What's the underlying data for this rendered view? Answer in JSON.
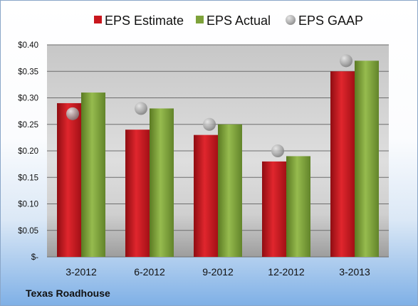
{
  "chart_data": {
    "type": "bar",
    "categories": [
      "3-2012",
      "6-2012",
      "9-2012",
      "12-2012",
      "3-2013"
    ],
    "series": [
      {
        "name": "EPS Estimate",
        "kind": "bar",
        "color": "#c8161d",
        "values": [
          0.29,
          0.24,
          0.23,
          0.18,
          0.35
        ]
      },
      {
        "name": "EPS Actual",
        "kind": "bar",
        "color": "#7ea23a",
        "values": [
          0.31,
          0.28,
          0.25,
          0.19,
          0.37
        ]
      },
      {
        "name": "EPS GAAP",
        "kind": "marker",
        "color": "#9a9a9a",
        "values": [
          0.27,
          0.28,
          0.25,
          0.2,
          0.37
        ]
      }
    ],
    "yticks": [
      "$-",
      "$0.05",
      "$0.10",
      "$0.15",
      "$0.20",
      "$0.25",
      "$0.30",
      "$0.35",
      "$0.40"
    ],
    "ylim": [
      0,
      0.4
    ],
    "grid": true,
    "legend": "top"
  },
  "footer": {
    "company": "Texas Roadhouse"
  }
}
